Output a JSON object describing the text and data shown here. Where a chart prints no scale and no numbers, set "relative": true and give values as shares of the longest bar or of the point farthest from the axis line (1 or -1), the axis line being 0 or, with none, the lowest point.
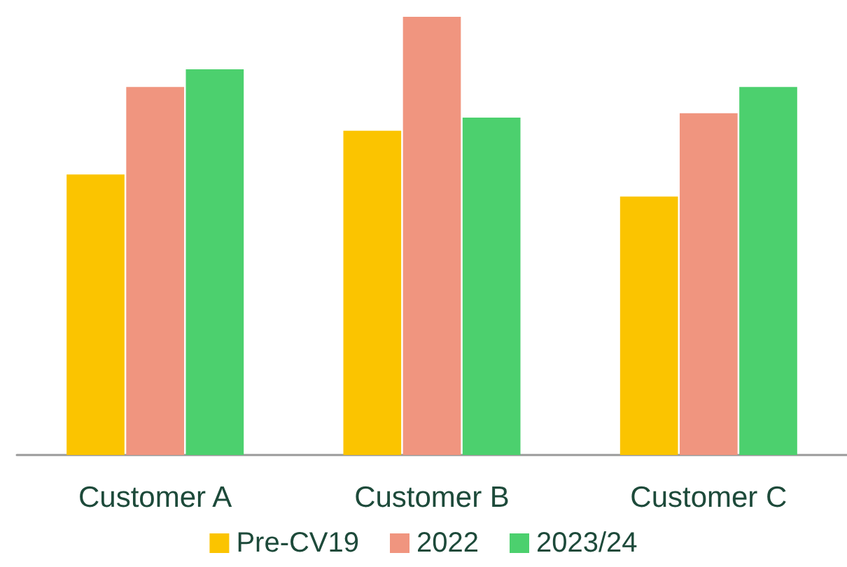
{
  "chart_data": {
    "type": "bar",
    "relative": true,
    "categories": [
      "Customer A",
      "Customer B",
      "Customer C"
    ],
    "series": [
      {
        "name": "Pre-CV19",
        "color": "#fbc400",
        "values": [
          0.64,
          0.74,
          0.59
        ]
      },
      {
        "name": "2022",
        "color": "#f0957f",
        "values": [
          0.84,
          1,
          0.78
        ]
      },
      {
        "name": "2023/24",
        "color": "#4cd06e",
        "values": [
          0.88,
          0.77,
          0.84
        ]
      }
    ],
    "legend": "bottom"
  }
}
